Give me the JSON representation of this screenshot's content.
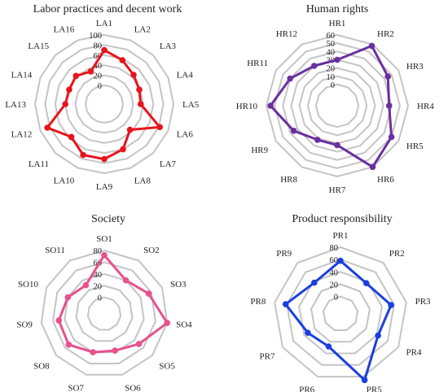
{
  "chart_data": [
    {
      "type": "radar",
      "title": "Labor practices and decent work",
      "color": "#e8141e",
      "rmax": 100,
      "ticks": [
        0,
        20,
        40,
        60,
        80,
        100
      ],
      "categories": [
        "LA1",
        "LA2",
        "LA3",
        "LA4",
        "LA5",
        "LA6",
        "LA7",
        "LA8",
        "LA9",
        "LA10",
        "LA11",
        "LA12",
        "LA13",
        "LA14",
        "LA15",
        "LA16"
      ],
      "values": [
        70,
        57,
        45,
        38,
        35,
        82,
        35,
        60,
        72,
        72,
        55,
        85,
        40,
        38,
        42,
        33
      ]
    },
    {
      "type": "radar",
      "title": "Human rights",
      "color": "#6a2fa0",
      "rmax": 60,
      "ticks": [
        0,
        10,
        20,
        30,
        40,
        50,
        60
      ],
      "categories": [
        "HR1",
        "HR2",
        "HR3",
        "HR4",
        "HR5",
        "HR6",
        "HR7",
        "HR8",
        "HR9",
        "HR10",
        "HR11",
        "HR12"
      ],
      "values": [
        30,
        58,
        45,
        37,
        50,
        60,
        22,
        22,
        35,
        55,
        40,
        30
      ]
    },
    {
      "type": "radar",
      "title": "Society",
      "color": "#e8508e",
      "rmax": 80,
      "ticks": [
        0,
        20,
        40,
        60,
        80
      ],
      "categories": [
        "SO1",
        "SO2",
        "SO3",
        "SO4",
        "SO5",
        "SO6",
        "SO7",
        "SO8",
        "SO9",
        "SO10",
        "SO11"
      ],
      "values": [
        72,
        40,
        55,
        80,
        50,
        37,
        40,
        52,
        50,
        40,
        30
      ]
    },
    {
      "type": "radar",
      "title": "Product responsibility",
      "color": "#1a3fe0",
      "rmax": 80,
      "ticks": [
        0,
        20,
        40,
        60,
        80
      ],
      "categories": [
        "PR1",
        "PR2",
        "PR3",
        "PR4",
        "PR5",
        "PR6",
        "PR7",
        "PR8",
        "PR9"
      ],
      "values": [
        58,
        37,
        55,
        42,
        86,
        28,
        33,
        62,
        38
      ]
    }
  ]
}
